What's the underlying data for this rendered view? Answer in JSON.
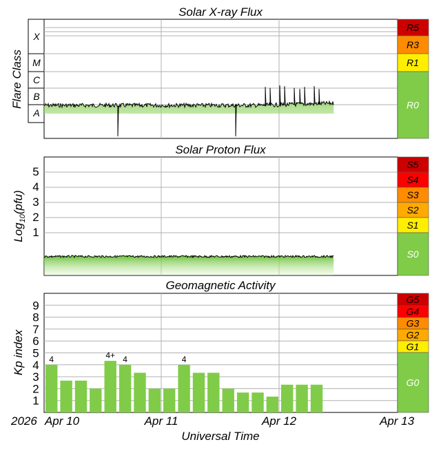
{
  "colors": {
    "green": "#80cc48",
    "green_fill": "#8fd35a",
    "yellow": "#ffee00",
    "orange": "#ff8c00",
    "orange_light": "#ffaa00",
    "red": "#ff0000",
    "dark_red": "#cc0000",
    "grid": "#b0b0b0",
    "line": "#000000"
  },
  "time_axis": {
    "year_label": "2026",
    "ticks": [
      "Apr 10",
      "Apr 11",
      "Apr 12",
      "Apr 13"
    ],
    "xlabel": "Universal Time"
  },
  "xray": {
    "title": "Solar X-ray Flux",
    "ylabel": "Flare Class",
    "class_labels": [
      "A",
      "B",
      "C",
      "M",
      "X"
    ],
    "scale": [
      {
        "label": "R5",
        "color": "#cc0000"
      },
      {
        "label": "R3",
        "color": "#ff8c00"
      },
      {
        "label": "R1",
        "color": "#ffee00"
      },
      {
        "label": "R0",
        "color": "#80cc48"
      }
    ]
  },
  "proton": {
    "title": "Solar Proton Flux",
    "ylabel_main": "Log",
    "ylabel_sub": "10",
    "ylabel_unit": "(pfu)",
    "ticks": [
      "1",
      "2",
      "3",
      "4",
      "5"
    ],
    "scale": [
      {
        "label": "S5",
        "color": "#cc0000"
      },
      {
        "label": "S4",
        "color": "#ff0000"
      },
      {
        "label": "S3",
        "color": "#ff8c00"
      },
      {
        "label": "S2",
        "color": "#ffaa00"
      },
      {
        "label": "S1",
        "color": "#ffee00"
      },
      {
        "label": "S0",
        "color": "#80cc48"
      }
    ]
  },
  "geomag": {
    "title": "Geomagnetic Activity",
    "ylabel": "Kp index",
    "ticks": [
      "1",
      "2",
      "3",
      "4",
      "5",
      "6",
      "7",
      "8",
      "9"
    ],
    "scale": [
      {
        "label": "G5",
        "color": "#cc0000"
      },
      {
        "label": "G4",
        "color": "#ff0000"
      },
      {
        "label": "G3",
        "color": "#ff8c00"
      },
      {
        "label": "G2",
        "color": "#ffaa00"
      },
      {
        "label": "G1",
        "color": "#ffee00"
      },
      {
        "label": "G0",
        "color": "#80cc48"
      }
    ]
  },
  "chart_data": [
    {
      "type": "area",
      "title": "Solar X-ray Flux",
      "ylabel": "Flare Class",
      "x_range": [
        "2026-04-10 00:00",
        "2026-04-13 00:00"
      ],
      "y_scale": "log",
      "y_ticks": [
        "A",
        "B",
        "C",
        "M",
        "X"
      ],
      "data_end": "2026-04-12 11:00",
      "baseline_class": "B1",
      "dips": [
        {
          "time": "2026-04-10 15:00",
          "class": "A1"
        },
        {
          "time": "2026-04-11 15:00",
          "class": "A1"
        }
      ],
      "peaks": [
        {
          "time": "2026-04-11 21:00",
          "class": "B8"
        },
        {
          "time": "2026-04-11 22:00",
          "class": "B7"
        },
        {
          "time": "2026-04-12 00:00",
          "class": "C1"
        },
        {
          "time": "2026-04-12 01:00",
          "class": "B9"
        },
        {
          "time": "2026-04-12 03:00",
          "class": "B7"
        },
        {
          "time": "2026-04-12 04:00",
          "class": "B6"
        },
        {
          "time": "2026-04-12 05:00",
          "class": "B8"
        },
        {
          "time": "2026-04-12 07:00",
          "class": "B9"
        },
        {
          "time": "2026-04-12 08:00",
          "class": "B6"
        }
      ],
      "grid": true
    },
    {
      "type": "area",
      "title": "Solar Proton Flux",
      "ylabel": "Log10(pfu)",
      "x_range": [
        "2026-04-10 00:00",
        "2026-04-13 00:00"
      ],
      "ylim": [
        -1.5,
        6
      ],
      "y_ticks": [
        1,
        2,
        3,
        4,
        5
      ],
      "data_end": "2026-04-12 11:00",
      "baseline": -0.3,
      "grid": true
    },
    {
      "type": "bar",
      "title": "Geomagnetic Activity",
      "ylabel": "Kp index",
      "xlabel": "Universal Time",
      "x_range": [
        "2026-04-10 00:00",
        "2026-04-13 00:00"
      ],
      "ylim": [
        0,
        10
      ],
      "interval_hours": 3,
      "start": "2026-04-10 00:00",
      "values": [
        4,
        2.67,
        2.67,
        2,
        4.33,
        4,
        3.33,
        2,
        2,
        4,
        3.33,
        3.33,
        2,
        1.67,
        1.67,
        1.33,
        2.33,
        2.33,
        2.33
      ],
      "value_labels": [
        {
          "index": 0,
          "text": "4"
        },
        {
          "index": 4,
          "text": "4+"
        },
        {
          "index": 5,
          "text": "4"
        },
        {
          "index": 9,
          "text": "4"
        }
      ],
      "grid": true
    }
  ]
}
